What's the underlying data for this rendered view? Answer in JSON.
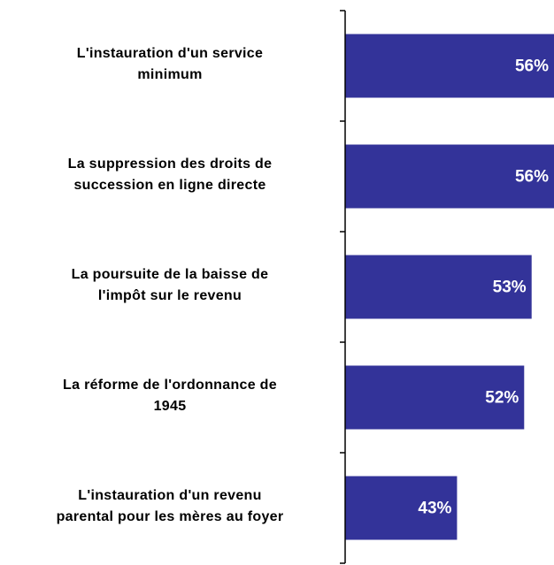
{
  "chart_data": {
    "type": "barh",
    "categories": [
      "L'instauration d'un service\nminimum",
      "La suppression des droits de\nsuccession en ligne directe",
      "La poursuite de la baisse de\nl'impôt sur le revenu",
      "La réforme de l'ordonnance de\n1945",
      "L'instauration d'un revenu\nparental pour les mères au foyer"
    ],
    "values": [
      56,
      56,
      53,
      52,
      43
    ],
    "value_labels": [
      "56%",
      "56%",
      "53%",
      "52%",
      "43%"
    ],
    "color": "#333399",
    "xlim": [
      28,
      56
    ]
  }
}
